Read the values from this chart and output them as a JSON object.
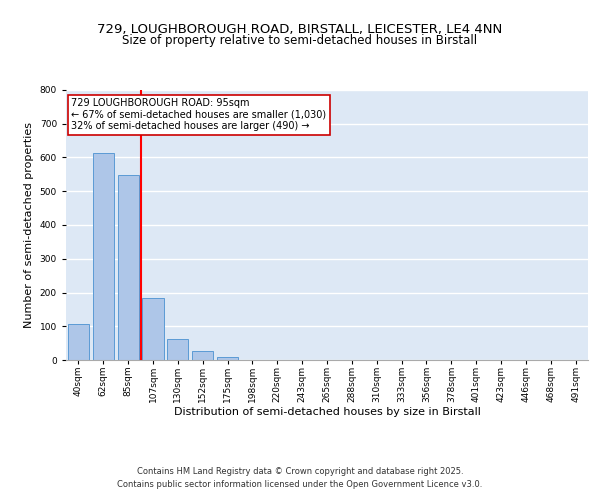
{
  "title_line1": "729, LOUGHBOROUGH ROAD, BIRSTALL, LEICESTER, LE4 4NN",
  "title_line2": "Size of property relative to semi-detached houses in Birstall",
  "xlabel": "Distribution of semi-detached houses by size in Birstall",
  "ylabel": "Number of semi-detached properties",
  "categories": [
    "40sqm",
    "62sqm",
    "85sqm",
    "107sqm",
    "130sqm",
    "152sqm",
    "175sqm",
    "198sqm",
    "220sqm",
    "243sqm",
    "265sqm",
    "288sqm",
    "310sqm",
    "333sqm",
    "356sqm",
    "378sqm",
    "401sqm",
    "423sqm",
    "446sqm",
    "468sqm",
    "491sqm"
  ],
  "values": [
    108,
    612,
    548,
    185,
    62,
    27,
    10,
    0,
    0,
    0,
    0,
    0,
    0,
    0,
    0,
    0,
    0,
    0,
    0,
    0,
    0
  ],
  "bar_color": "#aec6e8",
  "bar_edge_color": "#5b9bd5",
  "background_color": "#dde8f5",
  "grid_color": "#ffffff",
  "red_line_x": 2.5,
  "red_line_label": "729 LOUGHBOROUGH ROAD: 95sqm",
  "annotation_line2": "← 67% of semi-detached houses are smaller (1,030)",
  "annotation_line3": "32% of semi-detached houses are larger (490) →",
  "box_color": "#ffffff",
  "box_edge_color": "#cc0000",
  "ylim": [
    0,
    800
  ],
  "yticks": [
    0,
    100,
    200,
    300,
    400,
    500,
    600,
    700,
    800
  ],
  "footer_line1": "Contains HM Land Registry data © Crown copyright and database right 2025.",
  "footer_line2": "Contains public sector information licensed under the Open Government Licence v3.0.",
  "title_fontsize": 9.5,
  "subtitle_fontsize": 8.5,
  "axis_label_fontsize": 8,
  "tick_fontsize": 6.5,
  "annotation_fontsize": 7,
  "footer_fontsize": 6
}
